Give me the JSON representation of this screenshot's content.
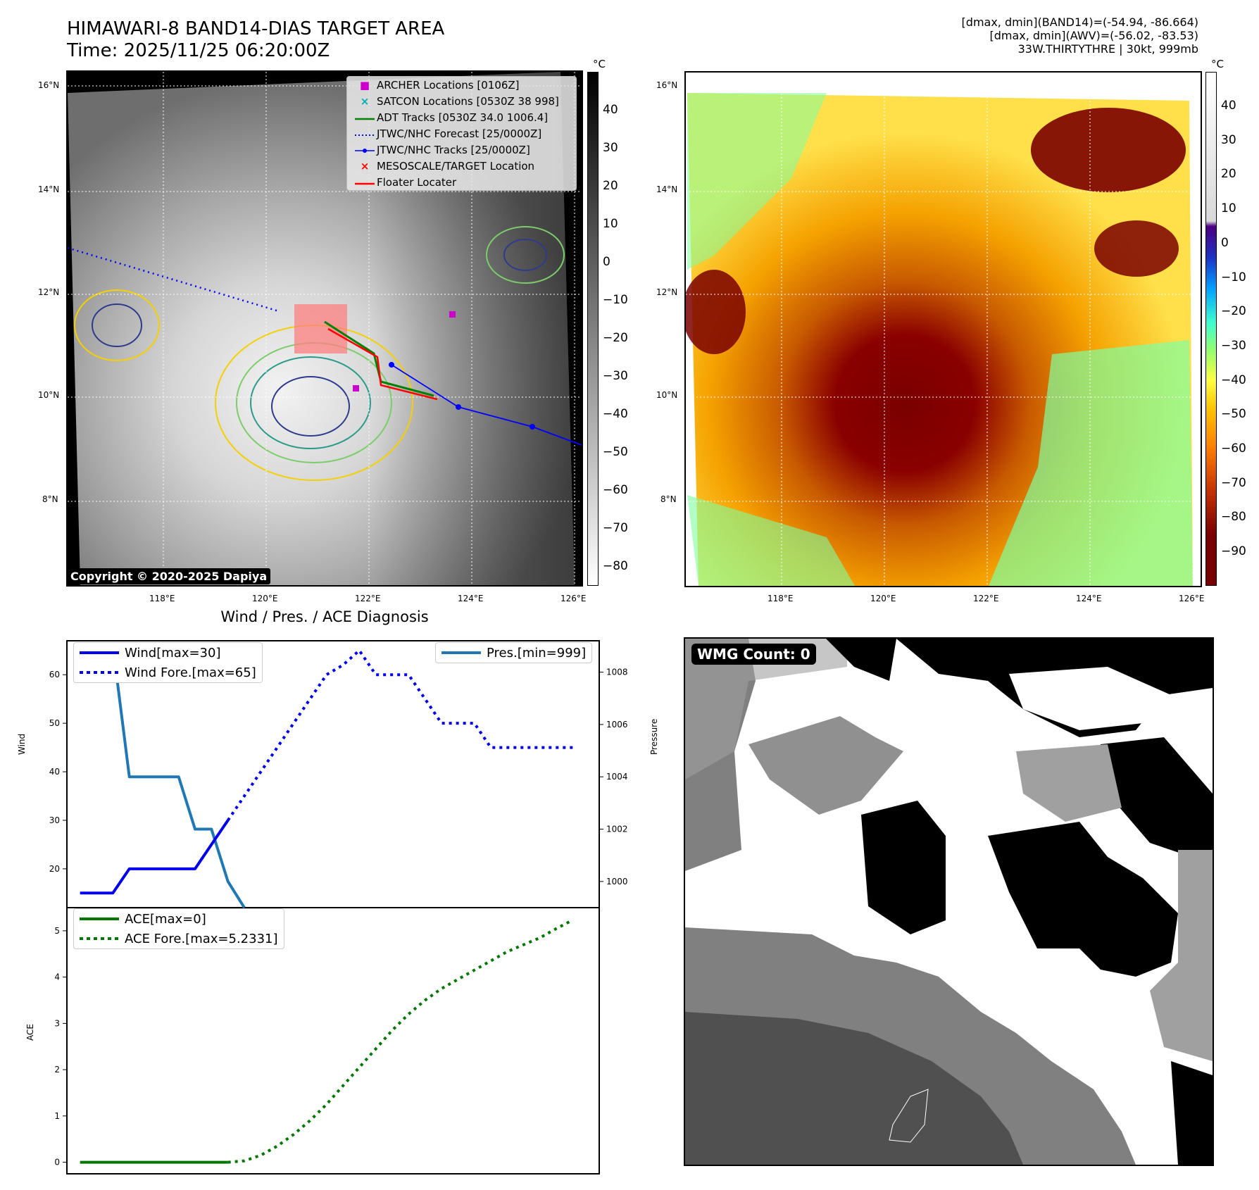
{
  "header": {
    "title_line1": "HIMAWARI-8 BAND14-DIAS TARGET AREA",
    "title_line2": "Time: 2025/11/25 06:20:00Z",
    "info_line1": "[dmax, dmin](BAND14)=(-54.94, -86.664)",
    "info_line2": "[dmax, dmin](AWV)=(-56.02, -83.53)",
    "info_line3": "33W.THIRTYTHRE | 30kt, 999mb"
  },
  "map_axes": {
    "lat_labels": [
      "16°N",
      "14°N",
      "12°N",
      "10°N",
      "8°N"
    ],
    "lon_labels": [
      "118°E",
      "120°E",
      "122°E",
      "124°E",
      "126°E"
    ]
  },
  "colorbar_left": {
    "unit": "°C",
    "ticks": [
      "40",
      "30",
      "20",
      "10",
      "0",
      "−10",
      "−20",
      "−30",
      "−40",
      "−50",
      "−60",
      "−70",
      "−80"
    ]
  },
  "colorbar_right": {
    "unit": "°C",
    "ticks": [
      "40",
      "30",
      "20",
      "10",
      "0",
      "−10",
      "−20",
      "−30",
      "−40",
      "−50",
      "−60",
      "−70",
      "−80",
      "−90"
    ]
  },
  "map_legend": [
    {
      "label": "ARCHER Locations [0106Z]",
      "icon": "magenta-square",
      "color": "#cc00cc"
    },
    {
      "label": "SATCON Locations [0530Z 38 998]",
      "icon": "cyan-x",
      "color": "#00b0b0"
    },
    {
      "label": "ADT Tracks [0530Z 34.0 1006.4]",
      "icon": "green-line",
      "color": "#008000"
    },
    {
      "label": "JTWC/NHC Forecast [25/0000Z]",
      "icon": "blue-dotted-line",
      "color": "#0000ff"
    },
    {
      "label": "JTWC/NHC Tracks [25/0000Z]",
      "icon": "blue-dot-line",
      "color": "#0000ff"
    },
    {
      "label": "MESOSCALE/TARGET Location",
      "icon": "red-x",
      "color": "#ff0000"
    },
    {
      "label": "Floater Locater",
      "icon": "red-line",
      "color": "#ff0000"
    }
  ],
  "copyright": "Copyright © 2020-2025 Dapiya",
  "diagnosis_title": "Wind / Pres. / ACE Diagnosis",
  "wmg_label": "WMG Count: 0",
  "chart_data": [
    {
      "type": "line",
      "title": "Wind / Pres. / ACE Diagnosis",
      "ylabel": "Wind",
      "ylabel_right": "Pressure",
      "ylim": [
        12,
        67
      ],
      "ylim_right": [
        999,
        1009.2
      ],
      "yticks": [
        20,
        30,
        40,
        50,
        60
      ],
      "yticks_right": [
        1000,
        1002,
        1004,
        1006,
        1008
      ],
      "series": [
        {
          "name": "Wind[max=30]",
          "axis": "left",
          "style": "solid",
          "color": "#0000ee",
          "x": [
            0,
            1,
            2,
            3,
            4,
            5,
            6,
            7,
            8,
            9
          ],
          "values": [
            15,
            15,
            15,
            20,
            20,
            20,
            20,
            20,
            25,
            30
          ]
        },
        {
          "name": "Wind Fore.[max=65]",
          "axis": "left",
          "style": "dotted",
          "color": "#0000ee",
          "x": [
            9,
            10,
            11,
            12,
            13,
            14,
            15,
            16,
            17,
            18,
            19,
            20,
            21,
            22,
            23,
            24,
            25,
            26,
            27,
            28,
            29,
            30
          ],
          "values": [
            30,
            35,
            40,
            45,
            50,
            55,
            60,
            62,
            65,
            60,
            60,
            60,
            55,
            50,
            50,
            50,
            45,
            45,
            45,
            45,
            45,
            45
          ]
        },
        {
          "name": "Pres.[min=999]",
          "axis": "right",
          "style": "solid",
          "color": "#1f77b4",
          "x": [
            1,
            2,
            3,
            4,
            5,
            6,
            7,
            8,
            9,
            10
          ],
          "values": [
            1009,
            1009,
            1004,
            1004,
            1004,
            1004,
            1002,
            1002,
            1000,
            999
          ]
        }
      ]
    },
    {
      "type": "line",
      "ylabel": "ACE",
      "ylim": [
        -0.25,
        5.5
      ],
      "yticks": [
        0,
        1,
        2,
        3,
        4,
        5
      ],
      "series": [
        {
          "name": "ACE[max=0]",
          "style": "solid",
          "color": "#007700",
          "x": [
            0,
            9
          ],
          "values": [
            0,
            0
          ]
        },
        {
          "name": "ACE Fore.[max=5.2331]",
          "style": "dotted",
          "color": "#007700",
          "x": [
            9,
            10,
            11,
            12,
            13,
            14,
            15,
            16,
            17,
            18,
            19,
            20,
            21,
            22,
            23,
            24,
            25,
            26,
            27,
            28,
            29,
            30
          ],
          "values": [
            0,
            0.03,
            0.15,
            0.35,
            0.6,
            0.9,
            1.25,
            1.65,
            2.05,
            2.45,
            2.85,
            3.2,
            3.5,
            3.75,
            3.95,
            4.15,
            4.35,
            4.55,
            4.7,
            4.85,
            5.05,
            5.2331
          ]
        }
      ]
    }
  ]
}
